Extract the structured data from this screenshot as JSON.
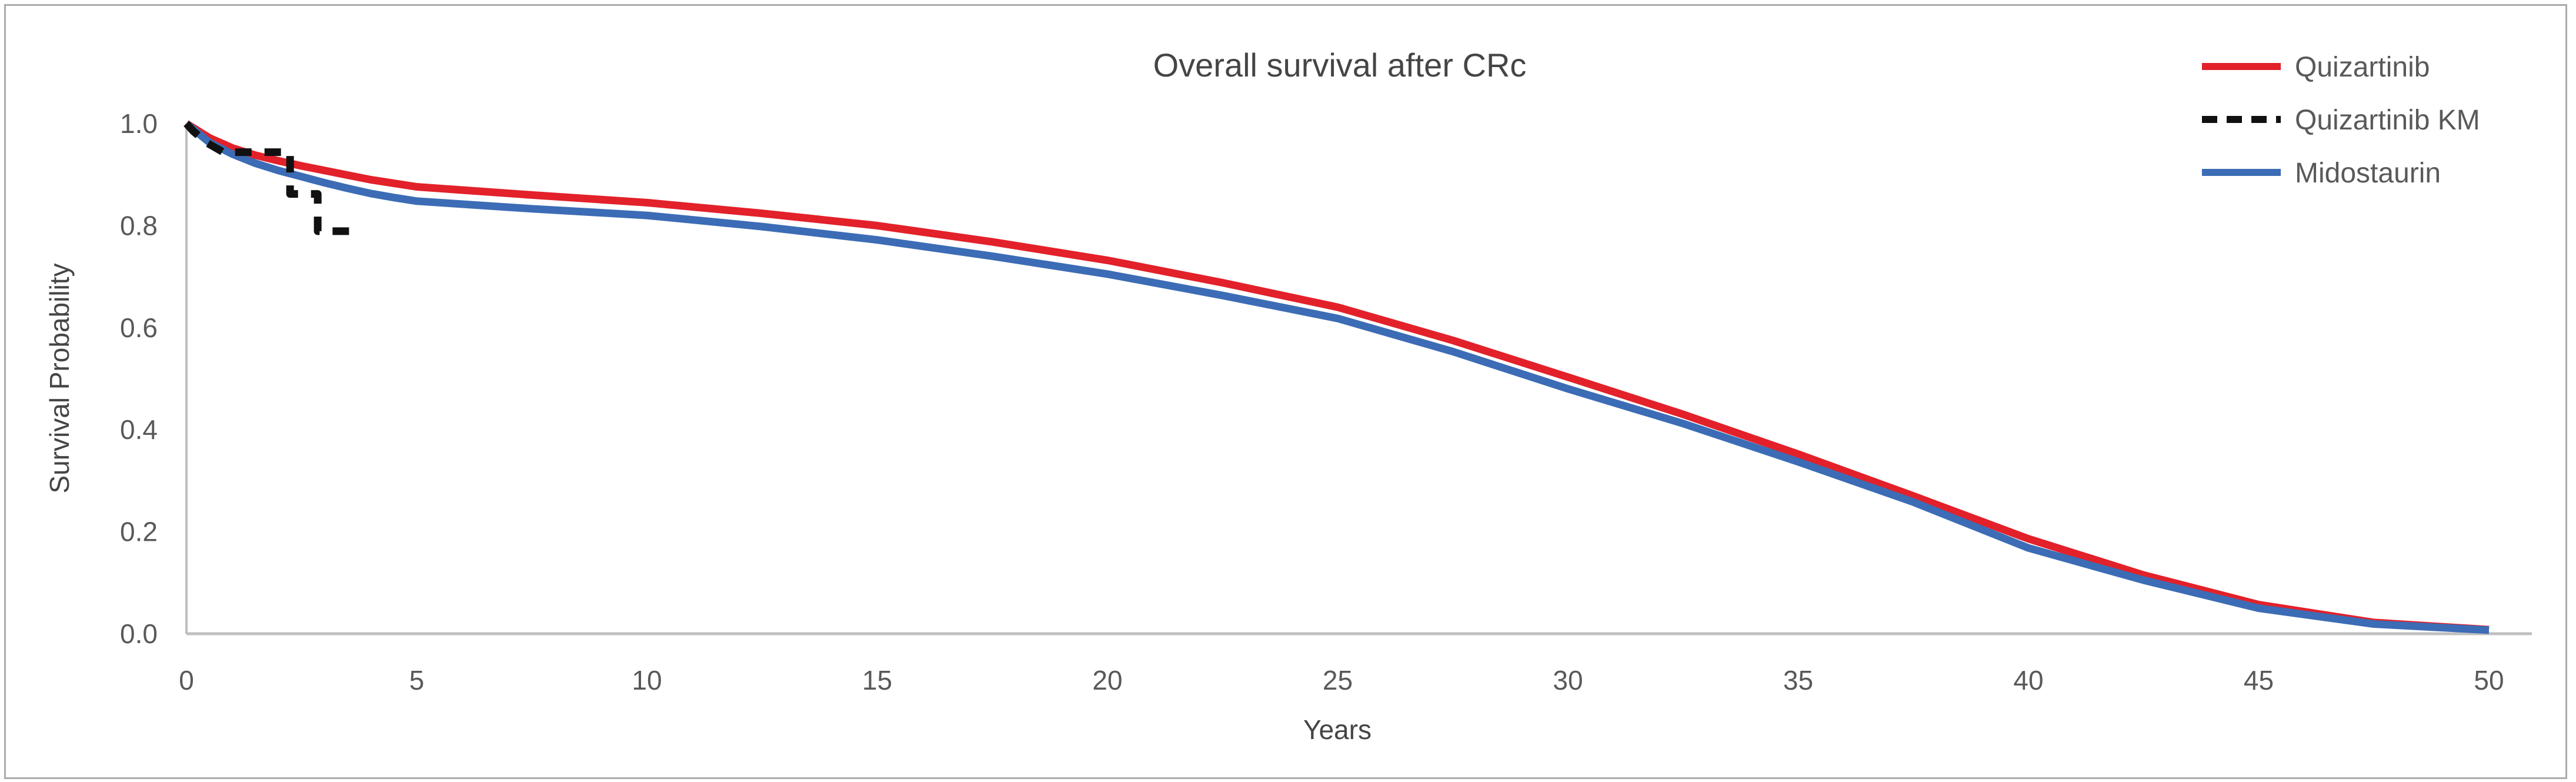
{
  "frame": {
    "border_color": "#ABABAB",
    "background": "#FFFFFF"
  },
  "axis": {
    "line_color": "#BFBFBF",
    "tick_text_color": "#595959",
    "title_text_color": "#454545",
    "legend_text_color": "#595959"
  },
  "chart_data": {
    "type": "line",
    "title": "Overall survival after CRc",
    "xlabel": "Years",
    "ylabel": "Survival Probability",
    "xlim": [
      0,
      50
    ],
    "ylim": [
      0.0,
      1.0
    ],
    "x_ticks": [
      0,
      5,
      10,
      15,
      20,
      25,
      30,
      35,
      40,
      45,
      50
    ],
    "y_ticks": [
      1.0,
      0.8,
      0.6,
      0.4,
      0.2,
      0.0
    ],
    "y_tick_decimals": 1,
    "grid": false,
    "legend_position": "top-right",
    "series": [
      {
        "name": "Quizartinib",
        "color": "#E2212A",
        "dash": "solid",
        "z": 1,
        "points": [
          [
            0,
            1.0
          ],
          [
            0.5,
            0.972
          ],
          [
            1,
            0.952
          ],
          [
            1.5,
            0.938
          ],
          [
            2,
            0.927
          ],
          [
            2.5,
            0.917
          ],
          [
            3,
            0.908
          ],
          [
            3.5,
            0.899
          ],
          [
            4,
            0.89
          ],
          [
            4.5,
            0.883
          ],
          [
            5,
            0.876
          ],
          [
            7.5,
            0.86
          ],
          [
            10,
            0.845
          ],
          [
            12.5,
            0.824
          ],
          [
            15,
            0.8
          ],
          [
            17.5,
            0.768
          ],
          [
            20,
            0.732
          ],
          [
            22.5,
            0.688
          ],
          [
            25,
            0.64
          ],
          [
            27.5,
            0.575
          ],
          [
            30,
            0.503
          ],
          [
            32.5,
            0.43
          ],
          [
            35,
            0.352
          ],
          [
            37.5,
            0.27
          ],
          [
            40,
            0.186
          ],
          [
            42.5,
            0.115
          ],
          [
            45,
            0.057
          ],
          [
            47.5,
            0.022
          ],
          [
            50,
            0.008
          ]
        ]
      },
      {
        "name": "Quizartinib KM",
        "color": "#111111",
        "dash": "dashed",
        "z": 3,
        "points": [
          [
            0,
            1.0
          ],
          [
            0.15,
            0.985
          ],
          [
            0.45,
            0.962
          ],
          [
            0.8,
            0.944
          ],
          [
            2.25,
            0.944
          ],
          [
            2.25,
            0.862
          ],
          [
            2.85,
            0.862
          ],
          [
            2.85,
            0.789
          ],
          [
            3.74,
            0.789
          ]
        ]
      },
      {
        "name": "Midostaurin",
        "color": "#3C6CB5",
        "dash": "solid",
        "z": 2,
        "points": [
          [
            0,
            1.0
          ],
          [
            0.5,
            0.963
          ],
          [
            1,
            0.94
          ],
          [
            1.5,
            0.922
          ],
          [
            2,
            0.908
          ],
          [
            2.5,
            0.896
          ],
          [
            3,
            0.884
          ],
          [
            3.5,
            0.873
          ],
          [
            4,
            0.863
          ],
          [
            4.5,
            0.855
          ],
          [
            5,
            0.848
          ],
          [
            7.5,
            0.833
          ],
          [
            10,
            0.82
          ],
          [
            12.5,
            0.798
          ],
          [
            15,
            0.772
          ],
          [
            17.5,
            0.74
          ],
          [
            20,
            0.705
          ],
          [
            22.5,
            0.663
          ],
          [
            25,
            0.618
          ],
          [
            27.5,
            0.553
          ],
          [
            30,
            0.48
          ],
          [
            32.5,
            0.412
          ],
          [
            35,
            0.337
          ],
          [
            37.5,
            0.258
          ],
          [
            40,
            0.168
          ],
          [
            42.5,
            0.105
          ],
          [
            45,
            0.05
          ],
          [
            47.5,
            0.019
          ],
          [
            50,
            0.007
          ]
        ]
      }
    ]
  }
}
